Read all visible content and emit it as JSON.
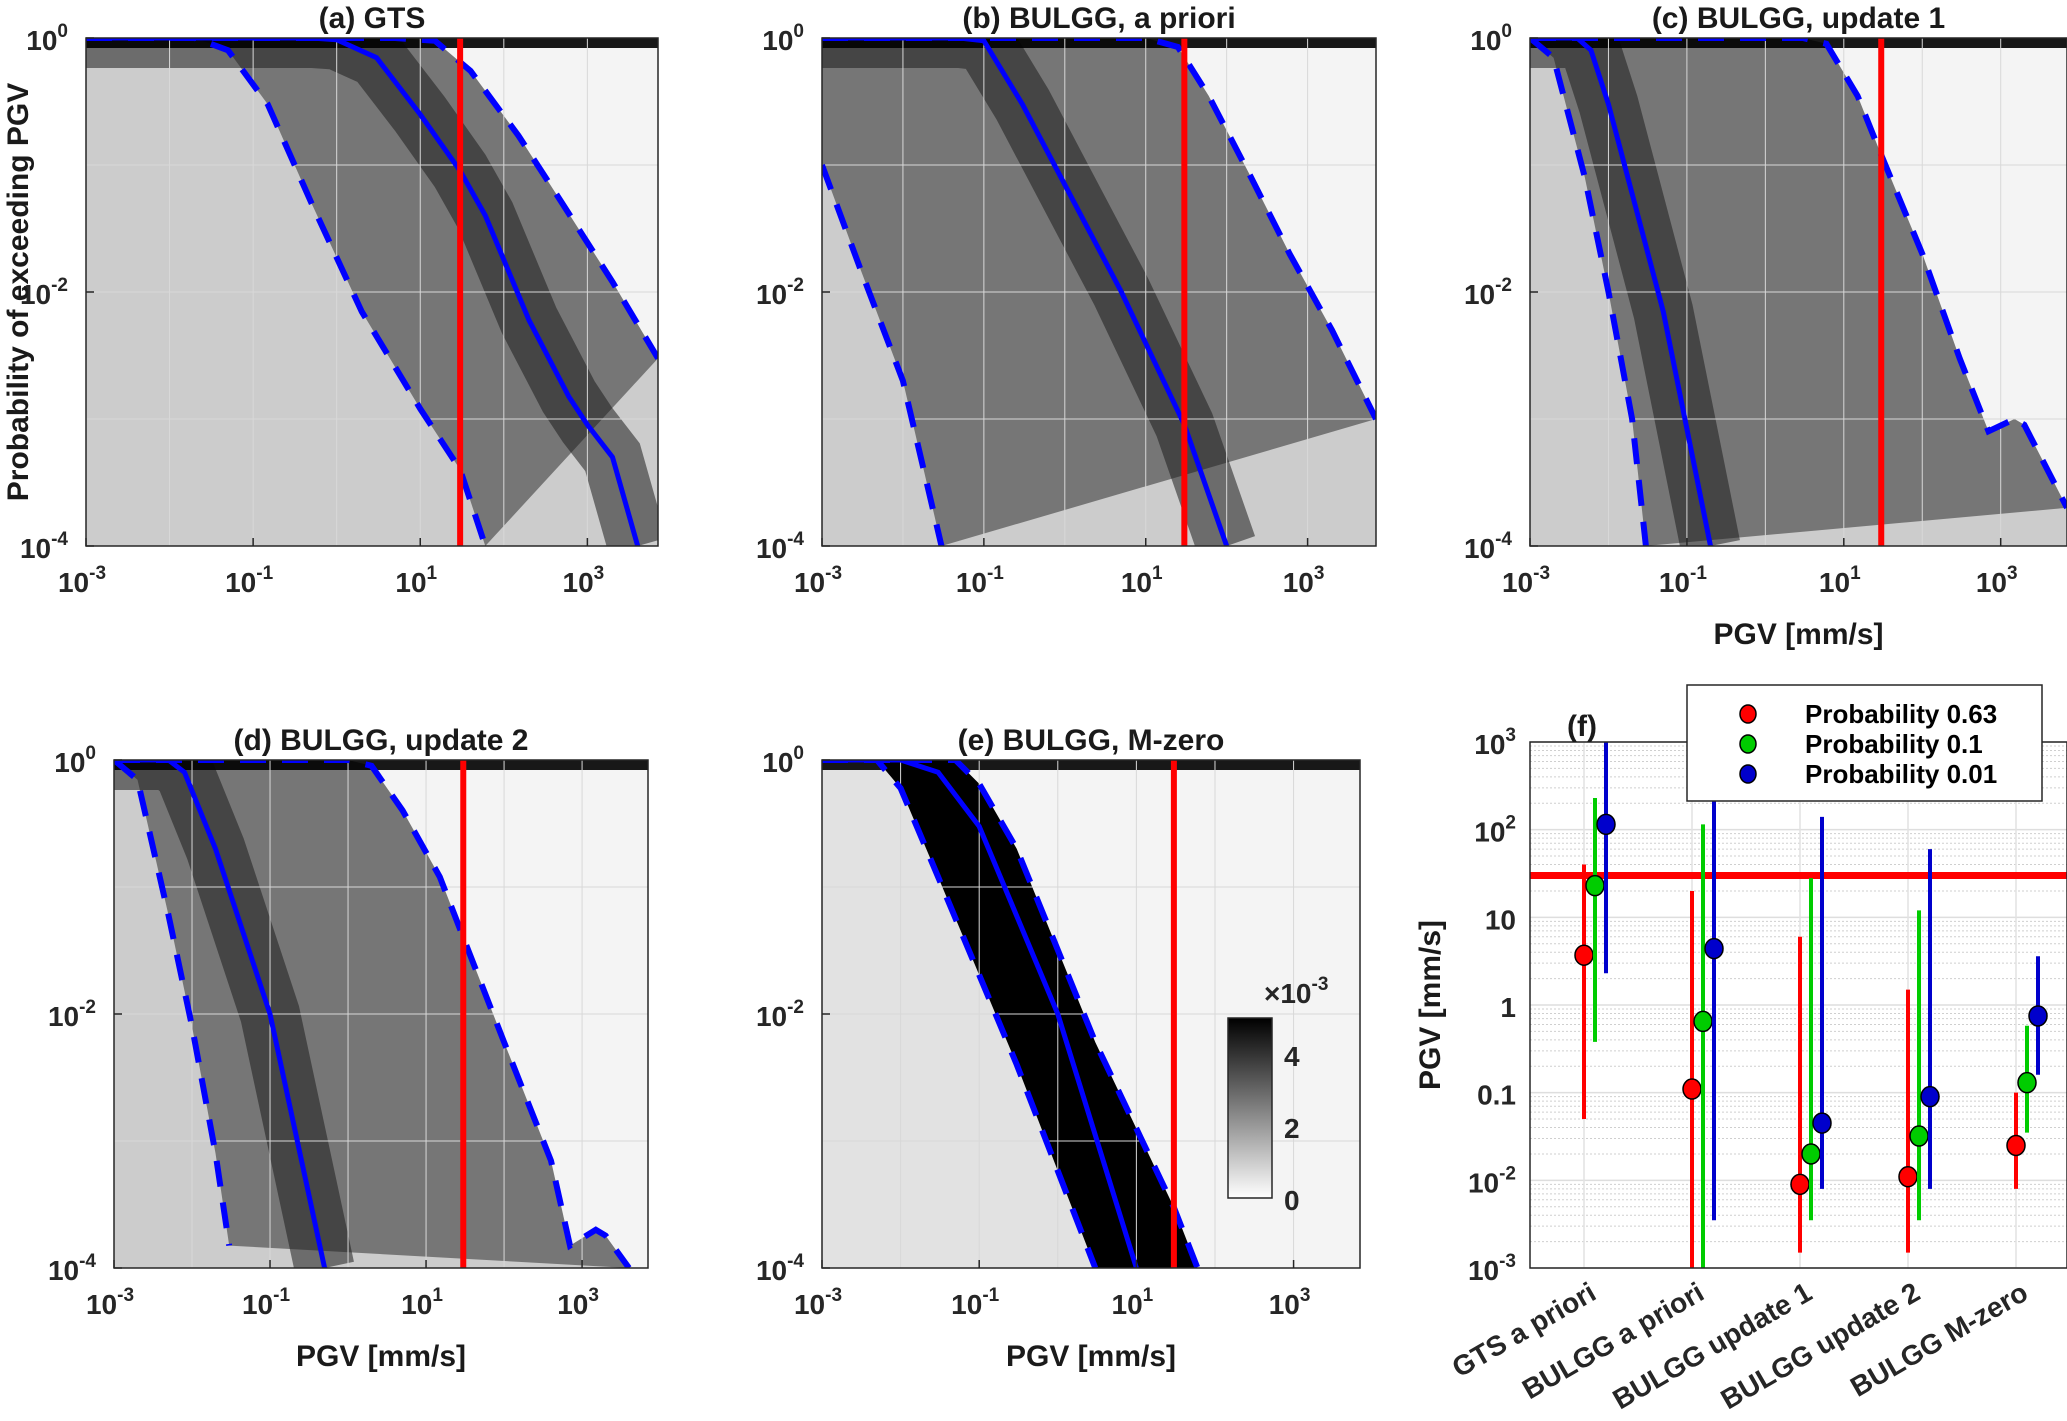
{
  "figure": {
    "panels": [
      {
        "id": "a",
        "title": "(a) GTS",
        "ylabel": "Probability of exceeding PGV",
        "xlabel": ""
      },
      {
        "id": "b",
        "title": "(b) BULGG, a priori",
        "ylabel": "",
        "xlabel": ""
      },
      {
        "id": "c",
        "title": "(c) BULGG, update 1",
        "ylabel": "",
        "xlabel": "PGV [mm/s]"
      },
      {
        "id": "d",
        "title": "(d) BULGG, update 2",
        "ylabel": "",
        "xlabel": "PGV [mm/s]"
      },
      {
        "id": "e",
        "title": "(e) BULGG, M-zero",
        "ylabel": "",
        "xlabel": "PGV [mm/s]"
      }
    ],
    "x_ticks": [
      {
        "base": "10",
        "exp": "-3"
      },
      {
        "base": "10",
        "exp": "-1"
      },
      {
        "base": "10",
        "exp": "1"
      },
      {
        "base": "10",
        "exp": "3"
      }
    ],
    "y_ticks": [
      {
        "base": "10",
        "exp": "0"
      },
      {
        "base": "10",
        "exp": "-2"
      },
      {
        "base": "10",
        "exp": "-4"
      }
    ],
    "colorbar": {
      "multiplier_prefix": "×10",
      "multiplier_exp": "-3",
      "ticks": [
        "0",
        "2",
        "4"
      ],
      "range": [
        0,
        5
      ]
    },
    "threshold_color": "#ff0000",
    "curve_color": "#0000ff"
  },
  "chart_data": [
    {
      "type": "line",
      "id": "a",
      "title": "(a) GTS",
      "xlabel": "",
      "ylabel": "Probability of exceeding PGV",
      "xscale": "log",
      "yscale": "log",
      "xlim": [
        0.001,
        7000
      ],
      "ylim": [
        0.0001,
        1
      ],
      "threshold_x": 30,
      "series": [
        {
          "name": "median",
          "style": "solid",
          "x": [
            0.001,
            0.5,
            1,
            3,
            10,
            30,
            60,
            200,
            600,
            1000,
            2000,
            4000
          ],
          "y": [
            1,
            1,
            0.97,
            0.7,
            0.25,
            0.09,
            0.04,
            0.006,
            0.0015,
            0.0009,
            0.0005,
            0.0001
          ]
        },
        {
          "name": "lower",
          "style": "dashed",
          "x": [
            0.001,
            0.02,
            0.05,
            0.15,
            0.5,
            2,
            10,
            30,
            60
          ],
          "y": [
            1,
            1,
            0.8,
            0.3,
            0.05,
            0.007,
            0.0012,
            0.0004,
            0.0001
          ]
        },
        {
          "name": "upper",
          "style": "dashed",
          "x": [
            0.001,
            5,
            15,
            40,
            150,
            500,
            2000,
            7000
          ],
          "y": [
            1,
            1,
            0.95,
            0.55,
            0.17,
            0.05,
            0.012,
            0.003
          ]
        }
      ]
    },
    {
      "type": "line",
      "id": "b",
      "title": "(b) BULGG, a priori",
      "xlabel": "",
      "ylabel": "",
      "xscale": "log",
      "yscale": "log",
      "xlim": [
        0.001,
        7000
      ],
      "ylim": [
        0.0001,
        1
      ],
      "threshold_x": 30,
      "series": [
        {
          "name": "median",
          "style": "solid",
          "x": [
            0.001,
            0.05,
            0.1,
            0.3,
            1,
            5,
            30,
            100
          ],
          "y": [
            1,
            1,
            0.95,
            0.3,
            0.07,
            0.01,
            0.0009,
            0.0001
          ]
        },
        {
          "name": "lower",
          "style": "dashed",
          "x": [
            0.001,
            0.003,
            0.01,
            0.03
          ],
          "y": [
            0.1,
            0.015,
            0.002,
            0.0001
          ]
        },
        {
          "name": "upper",
          "style": "dashed",
          "x": [
            0.001,
            10,
            25,
            60,
            200,
            600,
            2000,
            7000
          ],
          "y": [
            1,
            1,
            0.85,
            0.35,
            0.08,
            0.02,
            0.005,
            0.001
          ]
        }
      ]
    },
    {
      "type": "line",
      "id": "c",
      "title": "(c) BULGG, update 1",
      "xlabel": "PGV [mm/s]",
      "ylabel": "",
      "xscale": "log",
      "yscale": "log",
      "xlim": [
        0.001,
        7000
      ],
      "ylim": [
        0.0001,
        1
      ],
      "threshold_x": 30,
      "series": [
        {
          "name": "median",
          "style": "solid",
          "x": [
            0.001,
            0.004,
            0.006,
            0.01,
            0.05,
            0.2
          ],
          "y": [
            1,
            1,
            0.8,
            0.3,
            0.007,
            0.0001
          ]
        },
        {
          "name": "lower",
          "style": "dashed",
          "x": [
            0.001,
            0.002,
            0.005,
            0.01,
            0.02,
            0.03
          ],
          "y": [
            1,
            0.7,
            0.08,
            0.01,
            0.001,
            0.0001
          ]
        },
        {
          "name": "upper",
          "style": "dashed",
          "x": [
            0.001,
            3,
            6,
            15,
            30,
            100,
            300,
            700,
            1500,
            2000,
            7000
          ],
          "y": [
            1,
            1,
            0.9,
            0.35,
            0.12,
            0.02,
            0.003,
            0.0008,
            0.001,
            0.0009,
            0.0002
          ]
        }
      ]
    },
    {
      "type": "line",
      "id": "d",
      "title": "(d) BULGG, update 2",
      "xlabel": "PGV [mm/s]",
      "ylabel": "",
      "xscale": "log",
      "yscale": "log",
      "xlim": [
        0.001,
        7000
      ],
      "ylim": [
        0.0001,
        1
      ],
      "threshold_x": 30,
      "series": [
        {
          "name": "median",
          "style": "solid",
          "x": [
            0.001,
            0.005,
            0.008,
            0.02,
            0.1,
            0.5
          ],
          "y": [
            1,
            1,
            0.8,
            0.2,
            0.01,
            0.0001
          ]
        },
        {
          "name": "lower",
          "style": "dashed",
          "x": [
            0.001,
            0.002,
            0.005,
            0.01,
            0.02,
            0.03
          ],
          "y": [
            1,
            0.7,
            0.06,
            0.008,
            0.0008,
            0.00015
          ]
        },
        {
          "name": "upper",
          "style": "dashed",
          "x": [
            0.001,
            1,
            2,
            5,
            15,
            30,
            100,
            400,
            700,
            1500,
            2000,
            4000
          ],
          "y": [
            1,
            1,
            0.9,
            0.4,
            0.12,
            0.04,
            0.006,
            0.0007,
            0.00015,
            0.0002,
            0.00018,
            0.0001
          ]
        }
      ]
    },
    {
      "type": "line",
      "id": "e",
      "title": "(e) BULGG, M-zero",
      "xlabel": "PGV [mm/s]",
      "ylabel": "",
      "xscale": "log",
      "yscale": "log",
      "xlim": [
        0.001,
        7000
      ],
      "ylim": [
        0.0001,
        1
      ],
      "threshold_x": 30,
      "colorbar_label": "×10^-3",
      "colorbar_ticks": [
        0,
        2,
        4
      ],
      "series": [
        {
          "name": "median",
          "style": "solid",
          "x": [
            0.001,
            0.01,
            0.03,
            0.1,
            1,
            10
          ],
          "y": [
            1,
            1,
            0.8,
            0.3,
            0.01,
            0.0001
          ]
        },
        {
          "name": "lower",
          "style": "dashed",
          "x": [
            0.001,
            0.005,
            0.01,
            0.03,
            0.3,
            3
          ],
          "y": [
            1,
            1,
            0.6,
            0.12,
            0.004,
            0.0001
          ]
        },
        {
          "name": "upper",
          "style": "dashed",
          "x": [
            0.001,
            0.05,
            0.1,
            0.3,
            3,
            30,
            60
          ],
          "y": [
            1,
            1,
            0.65,
            0.2,
            0.006,
            0.0003,
            0.0001
          ]
        }
      ]
    },
    {
      "type": "scatter",
      "id": "f",
      "title": "(f)",
      "xlabel": "",
      "ylabel": "PGV [mm/s]",
      "yscale": "log",
      "ylim": [
        0.001,
        1000
      ],
      "ytick_labels": [
        "10^-3",
        "10^-2",
        "0.1",
        "1",
        "10",
        "10^2",
        "10^3"
      ],
      "categories": [
        "GTS a priori",
        "BULGG a priori",
        "BULGG update 1",
        "BULGG update 2",
        "BULGG M-zero"
      ],
      "threshold_y": 30,
      "legend": {
        "position": "top-right",
        "entries": [
          "Probability 0.63",
          "Probability 0.1",
          "Probability 0.01"
        ]
      },
      "series": [
        {
          "name": "Probability 0.63",
          "color": "#ff0000",
          "values": [
            3.7,
            0.11,
            0.009,
            0.011,
            0.025
          ],
          "lower": [
            0.05,
            0.001,
            0.0015,
            0.0015,
            0.008
          ],
          "upper": [
            40,
            20,
            6,
            1.5,
            0.1
          ]
        },
        {
          "name": "Probability 0.1",
          "color": "#00cc00",
          "values": [
            23,
            0.65,
            0.02,
            0.032,
            0.13
          ],
          "lower": [
            0.38,
            0.001,
            0.0035,
            0.0035,
            0.035
          ],
          "upper": [
            230,
            115,
            28,
            12,
            0.58
          ]
        },
        {
          "name": "Probability 0.01",
          "color": "#0000cc",
          "values": [
            115,
            4.4,
            0.045,
            0.09,
            0.75
          ],
          "lower": [
            2.3,
            0.0035,
            0.008,
            0.008,
            0.16
          ],
          "upper": [
            1000,
            250,
            140,
            60,
            3.6
          ]
        }
      ]
    }
  ]
}
